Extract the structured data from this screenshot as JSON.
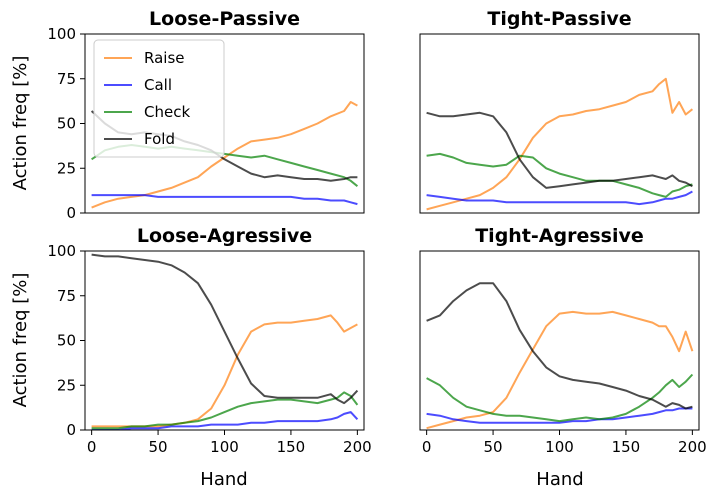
{
  "chart_data": {
    "type": "line",
    "xlabel": "Hand",
    "ylabel": "Action freq [%]",
    "xlim": [
      -5,
      205
    ],
    "ylim": [
      0,
      100
    ],
    "xticks": [
      0,
      50,
      100,
      150,
      200
    ],
    "yticks": [
      0,
      25,
      50,
      75,
      100
    ],
    "legend": {
      "location": "upper-left",
      "panel": "Loose-Passive",
      "entries": [
        "Raise",
        "Call",
        "Check",
        "Fold"
      ]
    },
    "series_colors": {
      "Raise": "#ff7f0e",
      "Call": "#0000ff",
      "Check": "#008000",
      "Fold": "#000000"
    },
    "panels": [
      {
        "title": "Loose-Passive",
        "x": [
          0,
          10,
          20,
          30,
          40,
          50,
          60,
          70,
          80,
          90,
          100,
          110,
          120,
          130,
          140,
          150,
          160,
          170,
          180,
          190,
          195,
          200
        ],
        "series": [
          {
            "name": "Raise",
            "values": [
              3,
              6,
              8,
              9,
              10,
              12,
              14,
              17,
              20,
              26,
              31,
              36,
              40,
              41,
              42,
              44,
              47,
              50,
              54,
              57,
              62,
              60
            ]
          },
          {
            "name": "Call",
            "values": [
              10,
              10,
              10,
              10,
              10,
              9,
              9,
              9,
              9,
              9,
              9,
              9,
              9,
              9,
              9,
              9,
              8,
              8,
              7,
              7,
              6,
              5
            ]
          },
          {
            "name": "Check",
            "values": [
              30,
              35,
              37,
              38,
              37,
              36,
              37,
              36,
              35,
              34,
              33,
              32,
              31,
              32,
              30,
              28,
              26,
              24,
              22,
              20,
              18,
              15
            ]
          },
          {
            "name": "Fold",
            "values": [
              57,
              50,
              45,
              44,
              45,
              44,
              43,
              40,
              38,
              35,
              30,
              26,
              22,
              20,
              21,
              20,
              19,
              19,
              18,
              19,
              20,
              20
            ]
          }
        ]
      },
      {
        "title": "Tight-Passive",
        "x": [
          0,
          10,
          20,
          30,
          40,
          50,
          60,
          70,
          80,
          90,
          100,
          110,
          120,
          130,
          140,
          150,
          160,
          170,
          175,
          180,
          185,
          190,
          195,
          200
        ],
        "series": [
          {
            "name": "Raise",
            "values": [
              2,
              4,
              6,
              8,
              10,
              14,
              20,
              30,
              42,
              50,
              54,
              55,
              57,
              58,
              60,
              62,
              66,
              68,
              72,
              75,
              56,
              62,
              55,
              58
            ]
          },
          {
            "name": "Call",
            "values": [
              10,
              9,
              8,
              7,
              7,
              7,
              6,
              6,
              6,
              6,
              6,
              6,
              6,
              6,
              6,
              6,
              5,
              6,
              7,
              8,
              8,
              9,
              10,
              12
            ]
          },
          {
            "name": "Check",
            "values": [
              32,
              33,
              31,
              28,
              27,
              26,
              27,
              32,
              31,
              25,
              22,
              20,
              18,
              18,
              18,
              16,
              14,
              11,
              10,
              9,
              12,
              13,
              15,
              16
            ]
          },
          {
            "name": "Fold",
            "values": [
              56,
              54,
              54,
              55,
              56,
              54,
              45,
              30,
              20,
              14,
              15,
              16,
              17,
              18,
              18,
              19,
              20,
              21,
              20,
              19,
              21,
              18,
              17,
              15
            ]
          }
        ]
      },
      {
        "title": "Loose-Agressive",
        "x": [
          0,
          10,
          20,
          30,
          40,
          50,
          60,
          70,
          80,
          90,
          100,
          110,
          120,
          130,
          140,
          150,
          160,
          170,
          180,
          185,
          190,
          195,
          200
        ],
        "series": [
          {
            "name": "Raise",
            "values": [
              2,
              2,
              2,
              2,
              2,
              2,
              3,
              4,
              6,
              12,
              25,
              42,
              55,
              59,
              60,
              60,
              61,
              62,
              64,
              60,
              55,
              57,
              59
            ]
          },
          {
            "name": "Call",
            "values": [
              0,
              0,
              0,
              1,
              1,
              1,
              2,
              2,
              2,
              3,
              3,
              3,
              4,
              4,
              5,
              5,
              5,
              5,
              6,
              7,
              9,
              10,
              6
            ]
          },
          {
            "name": "Check",
            "values": [
              1,
              1,
              1,
              2,
              2,
              3,
              3,
              4,
              5,
              7,
              10,
              13,
              15,
              16,
              17,
              17,
              16,
              15,
              17,
              18,
              21,
              19,
              14
            ]
          },
          {
            "name": "Fold",
            "values": [
              98,
              97,
              97,
              96,
              95,
              94,
              92,
              88,
              82,
              70,
              55,
              40,
              26,
              19,
              18,
              18,
              18,
              18,
              20,
              17,
              15,
              18,
              22
            ]
          }
        ]
      },
      {
        "title": "Tight-Agressive",
        "x": [
          0,
          10,
          20,
          30,
          40,
          50,
          60,
          70,
          80,
          90,
          100,
          110,
          120,
          130,
          140,
          150,
          160,
          170,
          175,
          180,
          185,
          190,
          195,
          200
        ],
        "series": [
          {
            "name": "Raise",
            "values": [
              1,
              3,
              5,
              7,
              8,
              10,
              18,
              32,
              45,
              58,
              65,
              66,
              65,
              65,
              66,
              64,
              62,
              60,
              58,
              58,
              52,
              44,
              55,
              44
            ]
          },
          {
            "name": "Call",
            "values": [
              9,
              8,
              6,
              5,
              4,
              4,
              4,
              4,
              4,
              4,
              4,
              5,
              5,
              6,
              6,
              7,
              8,
              9,
              10,
              11,
              11,
              12,
              12,
              12
            ]
          },
          {
            "name": "Check",
            "values": [
              29,
              25,
              18,
              13,
              11,
              9,
              8,
              8,
              7,
              6,
              5,
              6,
              7,
              6,
              7,
              9,
              13,
              18,
              21,
              25,
              28,
              24,
              27,
              31
            ]
          },
          {
            "name": "Fold",
            "values": [
              61,
              64,
              72,
              78,
              82,
              82,
              72,
              56,
              44,
              35,
              30,
              28,
              27,
              26,
              24,
              22,
              19,
              17,
              15,
              13,
              15,
              14,
              12,
              13
            ]
          }
        ]
      }
    ]
  }
}
